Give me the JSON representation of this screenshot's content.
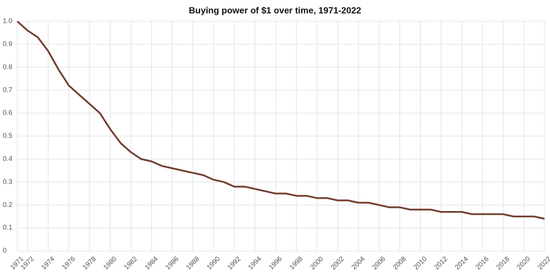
{
  "chart_data": {
    "type": "line",
    "title": "Buying power of $1 over time, 1971-2022",
    "x": [
      1971,
      1972,
      1973,
      1974,
      1975,
      1976,
      1977,
      1978,
      1979,
      1980,
      1981,
      1982,
      1983,
      1984,
      1985,
      1986,
      1987,
      1988,
      1989,
      1990,
      1991,
      1992,
      1993,
      1994,
      1995,
      1996,
      1997,
      1998,
      1999,
      2000,
      2001,
      2002,
      2003,
      2004,
      2005,
      2006,
      2007,
      2008,
      2009,
      2010,
      2011,
      2012,
      2013,
      2014,
      2015,
      2016,
      2017,
      2018,
      2019,
      2020,
      2021,
      2022
    ],
    "series": [
      {
        "name": "Buying power",
        "color": "#6e3b2b",
        "values": [
          1.0,
          0.96,
          0.93,
          0.87,
          0.79,
          0.72,
          0.68,
          0.64,
          0.6,
          0.53,
          0.47,
          0.43,
          0.4,
          0.39,
          0.37,
          0.36,
          0.35,
          0.34,
          0.33,
          0.31,
          0.3,
          0.28,
          0.28,
          0.27,
          0.26,
          0.25,
          0.25,
          0.24,
          0.24,
          0.23,
          0.23,
          0.22,
          0.22,
          0.21,
          0.21,
          0.2,
          0.19,
          0.19,
          0.18,
          0.18,
          0.18,
          0.17,
          0.17,
          0.17,
          0.16,
          0.16,
          0.16,
          0.16,
          0.15,
          0.15,
          0.15,
          0.14
        ]
      }
    ],
    "xlim": [
      1971,
      2022
    ],
    "xticks": [
      1971,
      1972,
      1974,
      1976,
      1978,
      1980,
      1982,
      1984,
      1986,
      1988,
      1990,
      1992,
      1994,
      1996,
      1998,
      2000,
      2002,
      2004,
      2006,
      2008,
      2010,
      2012,
      2014,
      2016,
      2018,
      2020,
      2022
    ],
    "ylim": [
      0,
      1
    ],
    "yticks": [
      0,
      0.1,
      0.2,
      0.3,
      0.4,
      0.5,
      0.6,
      0.7,
      0.8,
      0.9,
      {
        "value": 1,
        "label": "1.0"
      }
    ],
    "grid": true
  }
}
